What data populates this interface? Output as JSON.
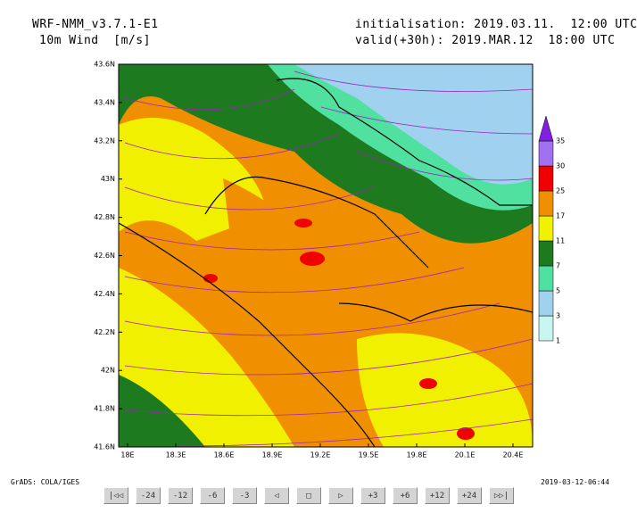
{
  "header": {
    "model": "WRF-NMM_v3.7.1-E1",
    "field": "10m Wind  [m/s]",
    "init": "initialisation: 2019.03.11.  12:00 UTC",
    "valid": "valid(+30h): 2019.MAR.12  18:00 UTC"
  },
  "map": {
    "lat_labels": [
      "43.6N",
      "43.4N",
      "43.2N",
      "43N",
      "42.8N",
      "42.6N",
      "42.4N",
      "42.2N",
      "42N",
      "41.8N",
      "41.6N"
    ],
    "lon_labels": [
      "18E",
      "18.3E",
      "18.6E",
      "18.9E",
      "19.2E",
      "19.5E",
      "19.8E",
      "20.1E",
      "20.4E"
    ]
  },
  "colorbar": {
    "levels": [
      "1",
      "3",
      "5",
      "7",
      "11",
      "17",
      "25",
      "30",
      "35"
    ],
    "colors": [
      "#c8f5f0",
      "#a0d2f0",
      "#50e0a0",
      "#1e7a1e",
      "#f0f000",
      "#f09000",
      "#f00000",
      "#a070f0",
      "#8020e0"
    ]
  },
  "footer": {
    "credit": "GrADS: COLA/IGES",
    "timestamp": "2019-03-12-06:44"
  },
  "controls": [
    "|◁◁",
    "-24",
    "-12",
    "-6",
    "-3",
    "◁",
    "□",
    "▷",
    "+3",
    "+6",
    "+12",
    "+24",
    "▷▷|"
  ]
}
